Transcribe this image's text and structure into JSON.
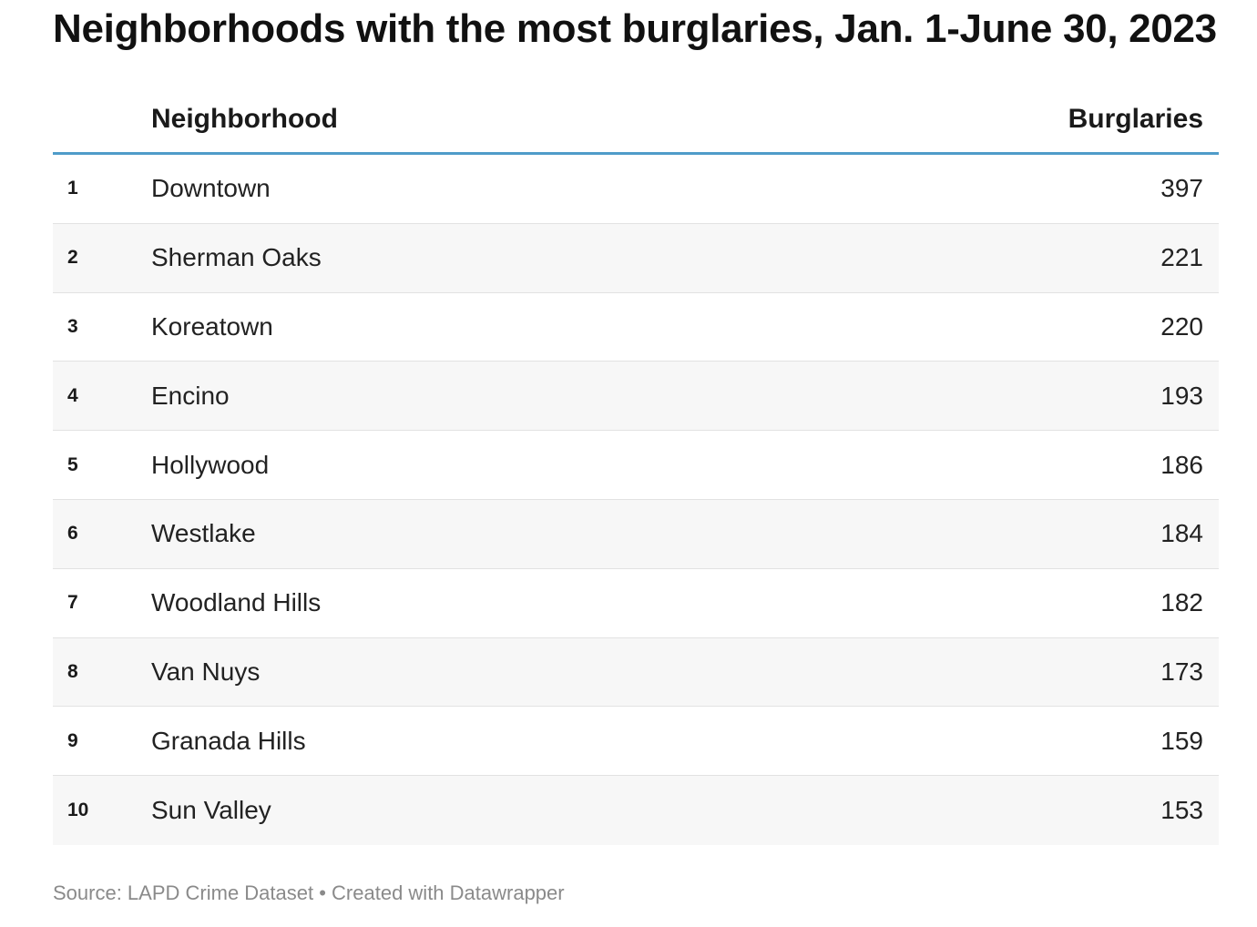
{
  "title": "Neighborhoods with the most burglaries, Jan. 1-June 30, 2023",
  "footer": "Source: LAPD Crime Dataset • Created with Datawrapper",
  "colors": {
    "header_rule": "#4f9cc9",
    "alt_row": "#f7f7f7",
    "footer_text": "#8a8a8a"
  },
  "chart_data": {
    "type": "table",
    "title": "Neighborhoods with the most burglaries, Jan. 1-June 30, 2023",
    "columns": [
      "",
      "Neighborhood",
      "Burglaries"
    ],
    "rows": [
      {
        "rank": "1",
        "name": "Downtown",
        "value": "397"
      },
      {
        "rank": "2",
        "name": "Sherman Oaks",
        "value": "221"
      },
      {
        "rank": "3",
        "name": "Koreatown",
        "value": "220"
      },
      {
        "rank": "4",
        "name": "Encino",
        "value": "193"
      },
      {
        "rank": "5",
        "name": "Hollywood",
        "value": "186"
      },
      {
        "rank": "6",
        "name": "Westlake",
        "value": "184"
      },
      {
        "rank": "7",
        "name": "Woodland Hills",
        "value": "182"
      },
      {
        "rank": "8",
        "name": "Van Nuys",
        "value": "173"
      },
      {
        "rank": "9",
        "name": "Granada Hills",
        "value": "159"
      },
      {
        "rank": "10",
        "name": "Sun Valley",
        "value": "153"
      }
    ]
  }
}
